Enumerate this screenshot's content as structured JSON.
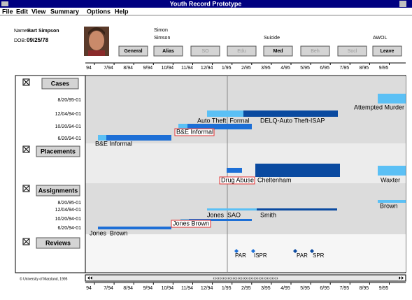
{
  "window": {
    "title": "Youth Record Prototype"
  },
  "menu": [
    "File",
    "Edit",
    "View",
    "Summary",
    "Options",
    "Help"
  ],
  "header": {
    "name_label": "Name:",
    "name": "Bart Simpson",
    "dob_label": "DOB:",
    "dob": "09/25/78",
    "tabs": [
      {
        "label": "General"
      },
      {
        "label": "Alias",
        "notes": [
          "Simon",
          "Simson"
        ]
      },
      {
        "label": "SO"
      },
      {
        "label": "Edu"
      },
      {
        "label": "Med",
        "notes": [
          "Suicide"
        ]
      },
      {
        "label": "Beh"
      },
      {
        "label": "Socl"
      },
      {
        "label": "Leave",
        "notes": [
          "AWOL"
        ]
      }
    ]
  },
  "timeline": {
    "ticks": [
      "94",
      "7/94",
      "8/94",
      "9/94",
      "10/94",
      "11/94",
      "12/94",
      "1/95",
      "2/95",
      "3/95",
      "4/95",
      "5/95",
      "6/95",
      "7/95",
      "8/95",
      "9/95"
    ],
    "facets": [
      {
        "label": "Cases",
        "rows": [
          "8/20/95-01",
          "12/04/94-01",
          "10/20/94-01",
          "6/20/94-01"
        ],
        "events": [
          "Attempted Murder",
          "Auto Theft  Formal",
          "DELQ-Auto Theft-ISAP",
          "B&E Informal",
          "B&E Informal"
        ]
      },
      {
        "label": "Placements",
        "events": [
          "Drug Abuse",
          "Cheltenham",
          "Waxter"
        ]
      },
      {
        "label": "Assignments",
        "rows": [
          "8/20/95-01",
          "12/04/94-01",
          "10/20/94-01",
          "6/20/94-01"
        ],
        "events": [
          "Brown",
          "Jones  SAO",
          "Smith",
          "Jones Brown",
          "Jones  Brown"
        ]
      },
      {
        "label": "Reviews",
        "events": [
          "PAR",
          "ISPR",
          "PAR",
          "SPR"
        ]
      }
    ],
    "scroll_hint": "‹‹‹‹‹‹‹‹‹‹‹‹‹‹‹‹‹‹‹‹››››››››››››››››››››"
  },
  "footer": {
    "copyright": "© University of Maryland, 1995"
  }
}
